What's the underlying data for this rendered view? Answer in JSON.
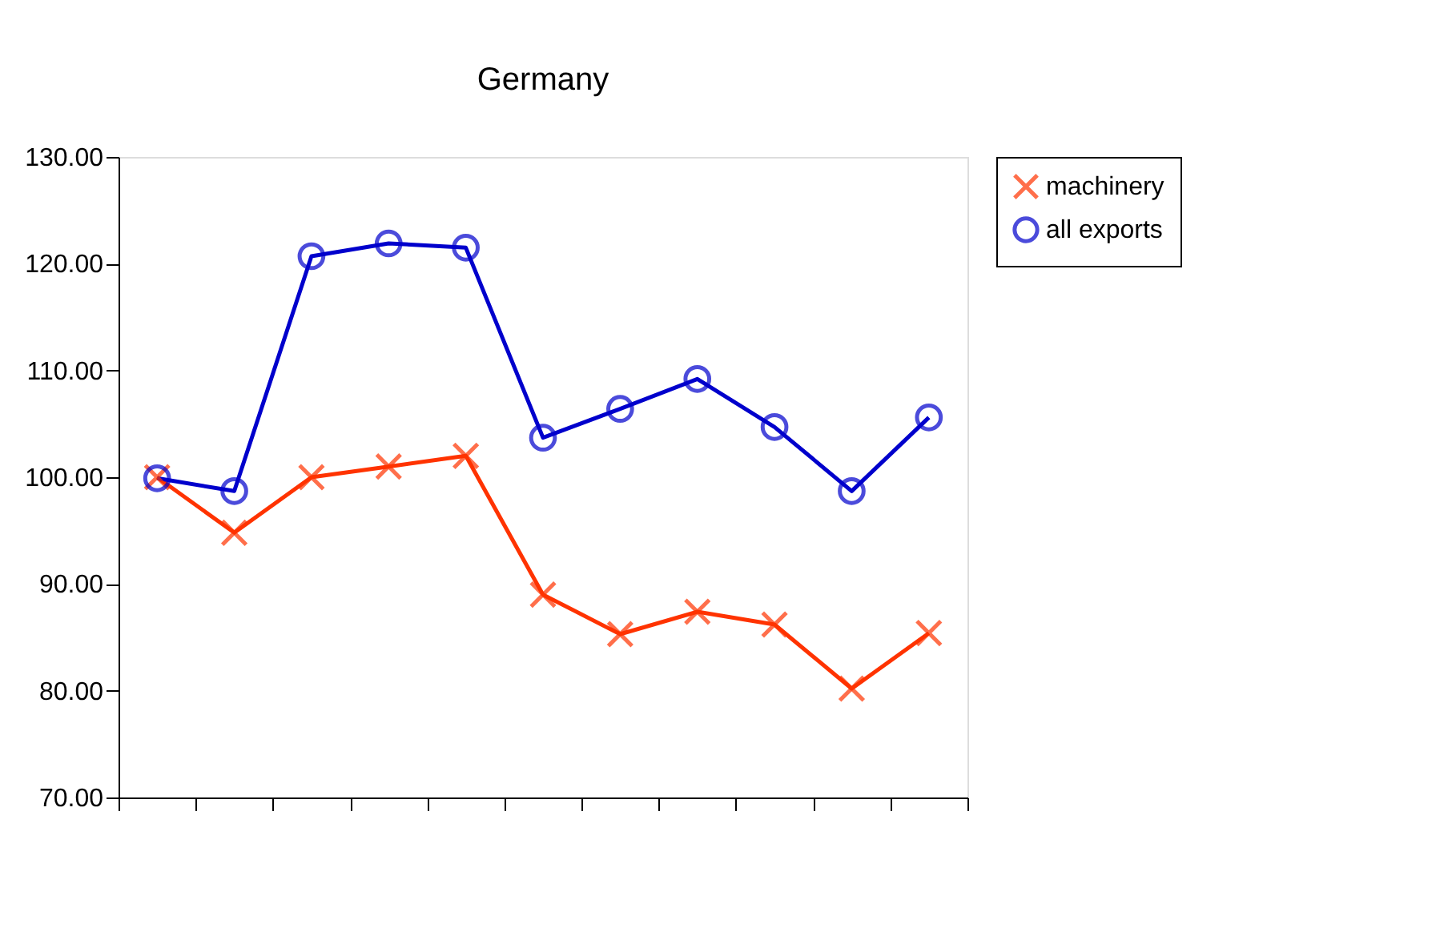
{
  "chart_data": {
    "type": "line",
    "title": "Germany",
    "categories": [
      null,
      null,
      null,
      null,
      null,
      null,
      null,
      null,
      null,
      null,
      null
    ],
    "series": [
      {
        "name": "machinery",
        "color": "#ff3300",
        "marker": "cross",
        "values": [
          100,
          94.8,
          100,
          101,
          102,
          89,
          85.3,
          87.4,
          86.2,
          80.2,
          85.4
        ]
      },
      {
        "name": "all exports",
        "color": "#0000cc",
        "marker": "circle",
        "values": [
          99.9,
          98.7,
          120.7,
          121.9,
          121.5,
          103.7,
          106.4,
          109.2,
          104.7,
          98.7,
          105.6
        ]
      }
    ],
    "ylim": [
      70,
      130
    ],
    "yticks": [
      {
        "value": 70,
        "label": "70.00"
      },
      {
        "value": 80,
        "label": "80.00"
      },
      {
        "value": 90,
        "label": "90.00"
      },
      {
        "value": 100,
        "label": "100.00"
      },
      {
        "value": 110,
        "label": "110.00"
      },
      {
        "value": 120,
        "label": "120.00"
      },
      {
        "value": 130,
        "label": "130.00"
      }
    ],
    "tick_labels": "y",
    "grid": false,
    "legend": "top right",
    "line_style": "solid"
  }
}
